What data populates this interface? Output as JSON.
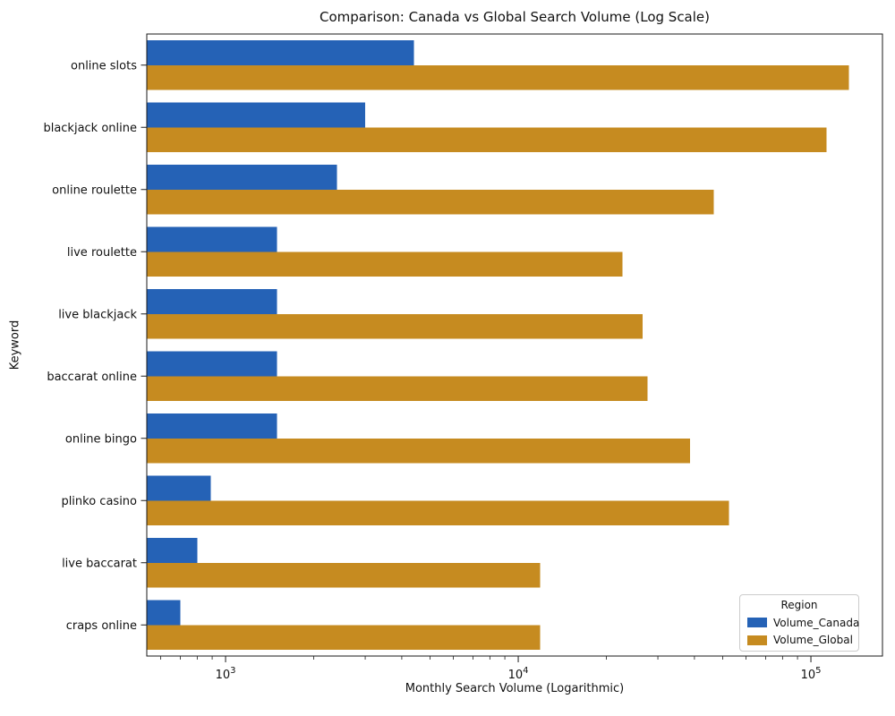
{
  "chart": {
    "title": "Comparison: Canada vs Global Search Volume (Log Scale)",
    "xlabel": "Monthly Search Volume (Logarithmic)",
    "ylabel": "Keyword"
  },
  "legend": {
    "title": "Region"
  },
  "chart_data": {
    "type": "bar",
    "orientation": "horizontal",
    "x_scale": "log",
    "grid": false,
    "legend_position": "lower right",
    "title": "Comparison: Canada vs Global Search Volume (Log Scale)",
    "xlabel": "Monthly Search Volume (Logarithmic)",
    "ylabel": "Keyword",
    "categories": [
      "online slots",
      "blackjack online",
      "online roulette",
      "live roulette",
      "live blackjack",
      "baccarat online",
      "online bingo",
      "plinko casino",
      "live baccarat",
      "craps online"
    ],
    "series": [
      {
        "name": "Volume_Canada",
        "color": "#2562b6",
        "values": [
          4400,
          3000,
          2400,
          1500,
          1500,
          1500,
          1500,
          890,
          800,
          700
        ]
      },
      {
        "name": "Volume_Global",
        "color": "#c68b20",
        "values": [
          135000,
          113000,
          46500,
          22700,
          26600,
          27700,
          38600,
          52400,
          11900,
          11900
        ]
      }
    ],
    "xlim": [
      538,
      175600
    ],
    "x_ticks": [
      {
        "base": "10",
        "exp": "3"
      },
      {
        "base": "10",
        "exp": "4"
      },
      {
        "base": "10",
        "exp": "5"
      }
    ]
  }
}
